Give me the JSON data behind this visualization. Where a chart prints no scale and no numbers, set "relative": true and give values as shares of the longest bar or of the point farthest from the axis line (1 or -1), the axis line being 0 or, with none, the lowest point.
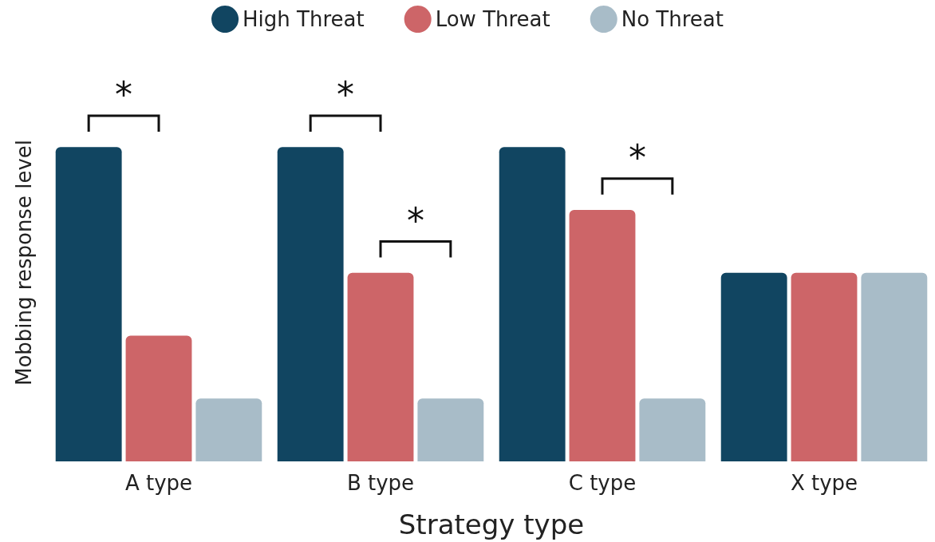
{
  "chart_data": {
    "type": "bar",
    "relative": true,
    "xlabel": "Strategy type",
    "ylabel": "Mobbing response level",
    "categories": [
      "A type",
      "B type",
      "C type",
      "X type"
    ],
    "series": [
      {
        "name": "High Threat",
        "color": "#114561",
        "values": [
          1,
          1,
          1,
          0.6
        ]
      },
      {
        "name": "Low Threat",
        "color": "#cd6568",
        "values": [
          0.4,
          0.6,
          0.8,
          0.6
        ]
      },
      {
        "name": "No Threat",
        "color": "#a8bcc8",
        "values": [
          0.2,
          0.2,
          0.2,
          0.6
        ]
      }
    ],
    "annotations": [
      "*",
      "*",
      "*",
      "*"
    ],
    "legend": "top",
    "grid": false
  }
}
